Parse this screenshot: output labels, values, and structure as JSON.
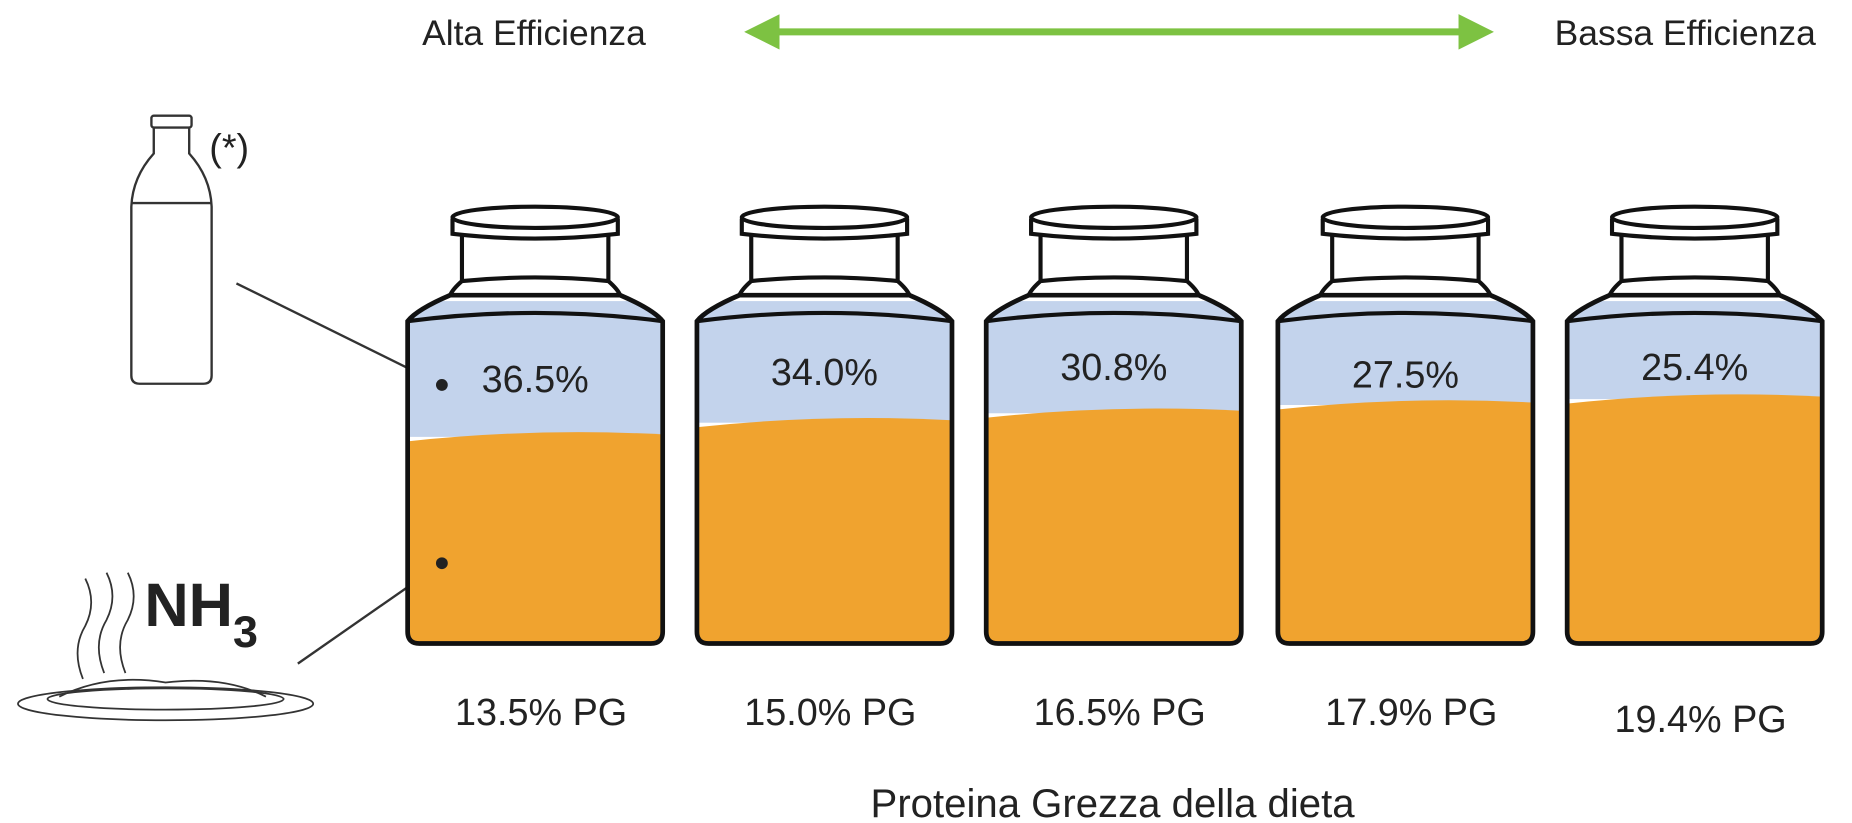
{
  "header": {
    "left": "Alta Efficienza",
    "right": "Bassa Efficienza"
  },
  "milk_marker": "(*)",
  "gas": {
    "symbol": "NH",
    "subscript": "3"
  },
  "cans": [
    {
      "milk": "36.5%",
      "diet": "13.5% PG"
    },
    {
      "milk": "34.0%",
      "diet": "15.0% PG"
    },
    {
      "milk": "30.8%",
      "diet": "16.5% PG"
    },
    {
      "milk": "27.5%",
      "diet": "17.9% PG"
    },
    {
      "milk": "25.4%",
      "diet": "19.4% PG"
    }
  ],
  "axis_label": "Proteina Grezza della dieta"
}
